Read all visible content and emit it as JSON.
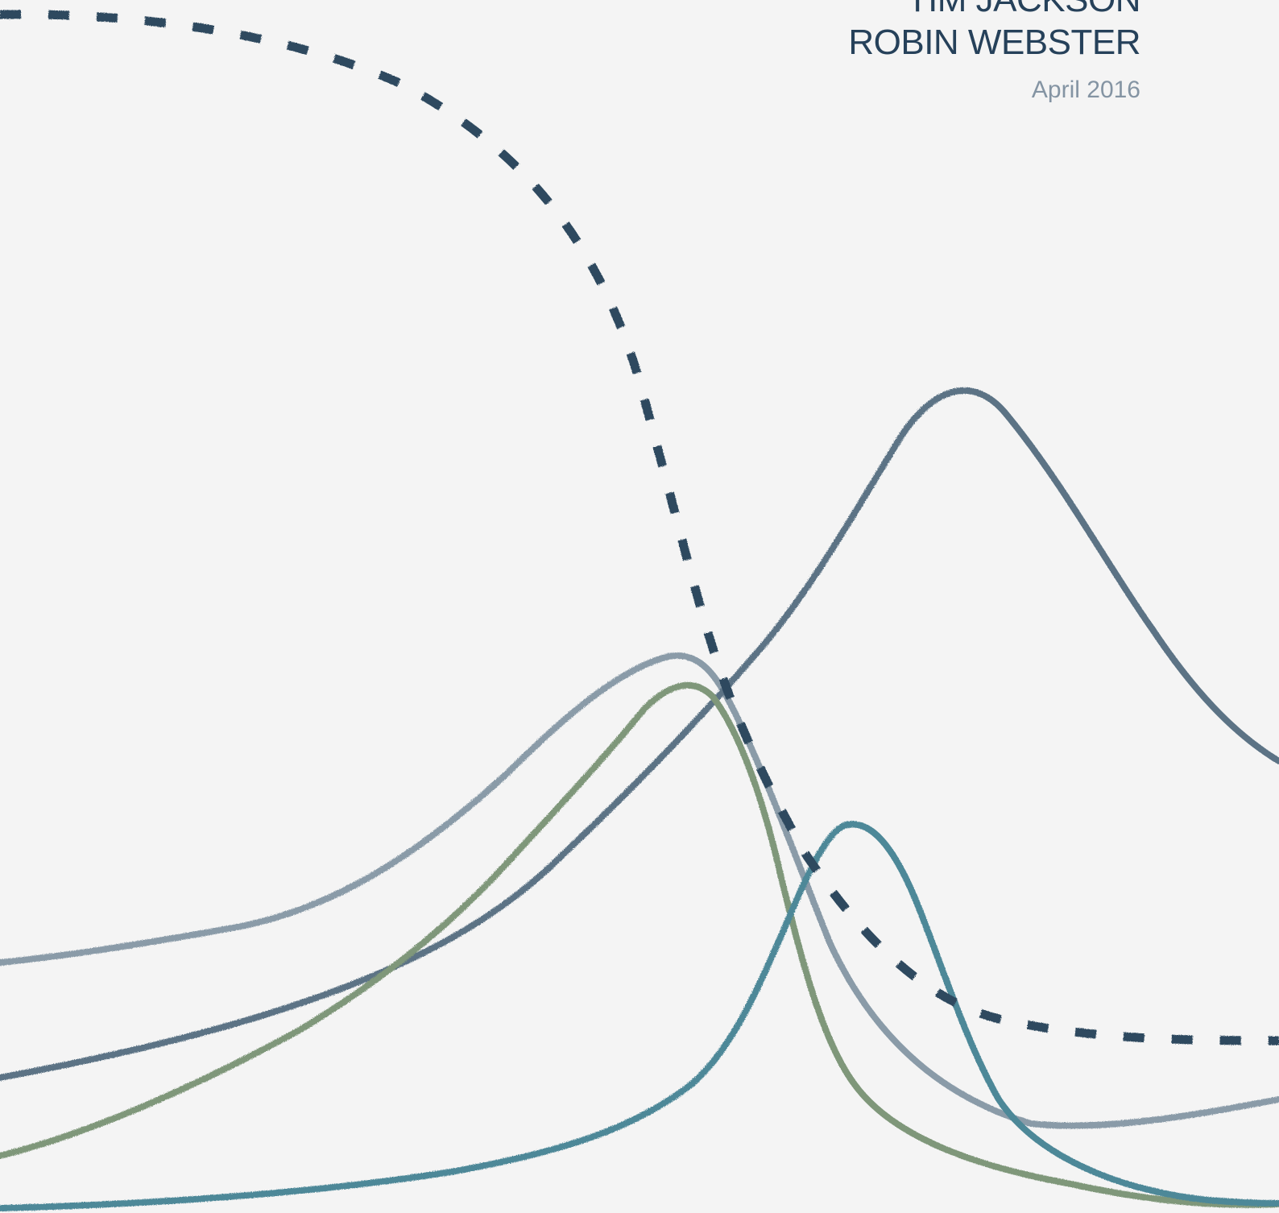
{
  "cover": {
    "authors": [
      "TIM JACKSON",
      "ROBIN WEBSTER"
    ],
    "date": "April 2016"
  },
  "colors": {
    "background": "#f4f4f4",
    "author_text": "#26415a",
    "date_text": "#8494a3",
    "dashed_curve": "#2e4a5f",
    "curve_slate": "#5b7385",
    "curve_grey": "#8a9ba8",
    "curve_olive": "#7f977a",
    "curve_teal": "#4e8898"
  },
  "illustration": {
    "style": "hand-drawn sketch curves",
    "curves": [
      {
        "id": "dashed",
        "color_key": "dashed_curve",
        "dashed": true
      },
      {
        "id": "slate",
        "color_key": "curve_slate",
        "dashed": false
      },
      {
        "id": "grey",
        "color_key": "curve_grey",
        "dashed": false
      },
      {
        "id": "olive",
        "color_key": "curve_olive",
        "dashed": false
      },
      {
        "id": "teal",
        "color_key": "curve_teal",
        "dashed": false
      }
    ]
  }
}
